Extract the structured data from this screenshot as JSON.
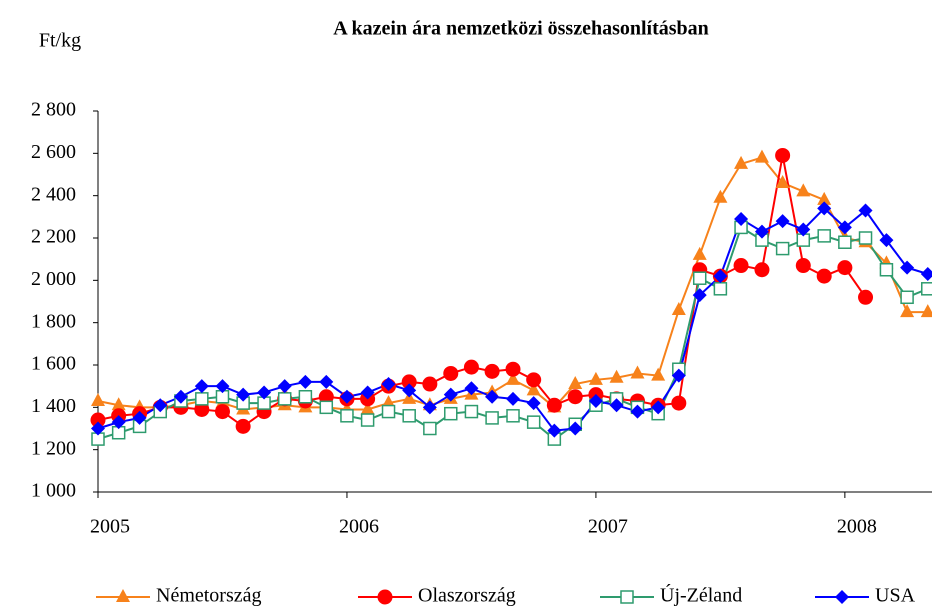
{
  "chart_data": {
    "type": "line",
    "title": "A kazein ára nemzetközi összehasonlításban",
    "y_label": "Ft/kg",
    "x": [
      2005,
      2005.083,
      2005.167,
      2005.25,
      2005.333,
      2005.417,
      2005.5,
      2005.583,
      2005.667,
      2005.75,
      2005.833,
      2005.917,
      2006,
      2006.083,
      2006.167,
      2006.25,
      2006.333,
      2006.417,
      2006.5,
      2006.583,
      2006.667,
      2006.75,
      2006.833,
      2006.917,
      2007,
      2007.083,
      2007.167,
      2007.25,
      2007.333,
      2007.417,
      2007.5,
      2007.583,
      2007.667,
      2007.75,
      2007.833,
      2007.917,
      2008,
      2008.083,
      2008.167,
      2008.25,
      2008.333
    ],
    "xlim": [
      2005,
      2008.35
    ],
    "xticks": [
      2005,
      2006,
      2007,
      2008
    ],
    "ylim": [
      1000,
      2800
    ],
    "yticks": [
      {
        "value": 1000,
        "label": "1 000"
      },
      {
        "value": 1200,
        "label": "1 200"
      },
      {
        "value": 1400,
        "label": "1 400"
      },
      {
        "value": 1600,
        "label": "1 600"
      },
      {
        "value": 1800,
        "label": "1 800"
      },
      {
        "value": 2000,
        "label": "2 000"
      },
      {
        "value": 2200,
        "label": "2 200"
      },
      {
        "value": 2400,
        "label": "2 400"
      },
      {
        "value": 2600,
        "label": "2 600"
      },
      {
        "value": 2800,
        "label": "2 800"
      }
    ],
    "legend": "bottom",
    "series": [
      {
        "name": "Németország",
        "color": "#f7821b",
        "marker": "triangle",
        "values": [
          1430,
          1410,
          1400,
          1400,
          1410,
          1430,
          1420,
          1390,
          1400,
          1410,
          1400,
          1400,
          1390,
          1390,
          1420,
          1440,
          1410,
          1440,
          1460,
          1470,
          1530,
          1480,
          1400,
          1510,
          1530,
          1540,
          1560,
          1550,
          1860,
          2120,
          2390,
          2550,
          2580,
          2460,
          2420,
          2380,
          2200,
          2180,
          2080,
          1850,
          1850
        ]
      },
      {
        "name": "Olaszország",
        "color": "#ff0000",
        "marker": "circle",
        "values": [
          1340,
          1360,
          1370,
          1400,
          1400,
          1390,
          1380,
          1310,
          1380,
          1440,
          1430,
          1450,
          1440,
          1440,
          1500,
          1520,
          1510,
          1560,
          1590,
          1570,
          1580,
          1530,
          1410,
          1450,
          1460,
          1440,
          1430,
          1410,
          1420,
          2050,
          2020,
          2070,
          2050,
          2590,
          2070,
          2020,
          2060,
          1920,
          null,
          null,
          null
        ]
      },
      {
        "name": "Új-Zéland",
        "color": "#2e9b6e",
        "marker": "square",
        "values": [
          1250,
          1280,
          1310,
          1380,
          1430,
          1440,
          1450,
          1420,
          1420,
          1440,
          1450,
          1400,
          1360,
          1340,
          1380,
          1360,
          1300,
          1370,
          1380,
          1350,
          1360,
          1330,
          1250,
          1320,
          1410,
          1440,
          1400,
          1370,
          1580,
          2010,
          1960,
          2250,
          2190,
          2150,
          2190,
          2210,
          2180,
          2200,
          2050,
          1920,
          1960
        ]
      },
      {
        "name": "USA",
        "color": "#0000ff",
        "marker": "diamond",
        "values": [
          1300,
          1330,
          1350,
          1410,
          1450,
          1500,
          1500,
          1460,
          1470,
          1500,
          1520,
          1520,
          1450,
          1470,
          1510,
          1480,
          1400,
          1460,
          1490,
          1450,
          1440,
          1420,
          1290,
          1300,
          1430,
          1410,
          1380,
          1400,
          1550,
          1930,
          2020,
          2290,
          2230,
          2280,
          2240,
          2340,
          2250,
          2330,
          2190,
          2060,
          2030
        ]
      }
    ]
  }
}
